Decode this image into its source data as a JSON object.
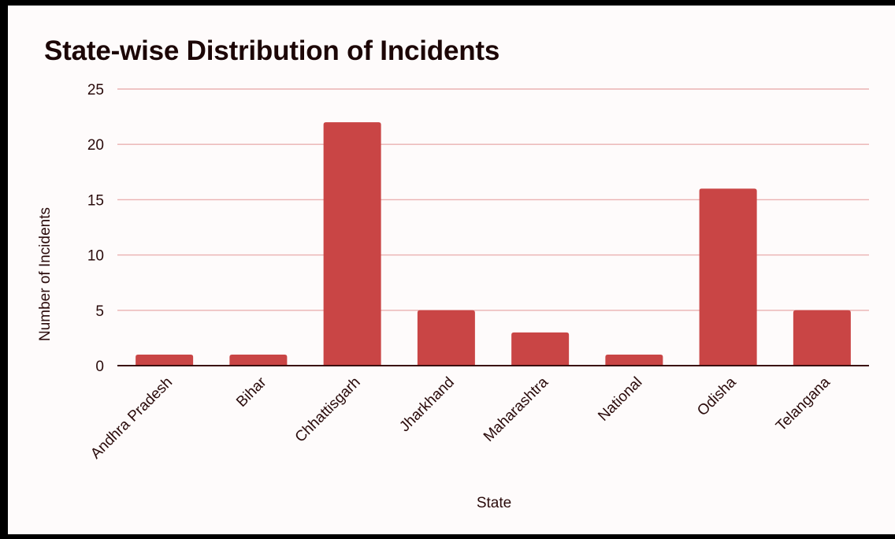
{
  "chart_data": {
    "type": "bar",
    "title": "State-wise Distribution of Incidents",
    "xlabel": "State",
    "ylabel": "Number of Incidents",
    "categories": [
      "Andhra Pradesh",
      "Bihar",
      "Chhattisgarh",
      "Jharkhand",
      "Maharashtra",
      "National",
      "Odisha",
      "Telangana"
    ],
    "values": [
      1,
      1,
      22,
      5,
      3,
      1,
      16,
      5
    ],
    "ylim": [
      0,
      25
    ],
    "yticks": [
      0,
      5,
      10,
      15,
      20,
      25
    ],
    "grid": true,
    "legend": "none",
    "colors": {
      "bar": "#c94545",
      "grid": "#eab1b1",
      "axis": "#3a0d0d",
      "text": "#2a0b0b"
    }
  }
}
